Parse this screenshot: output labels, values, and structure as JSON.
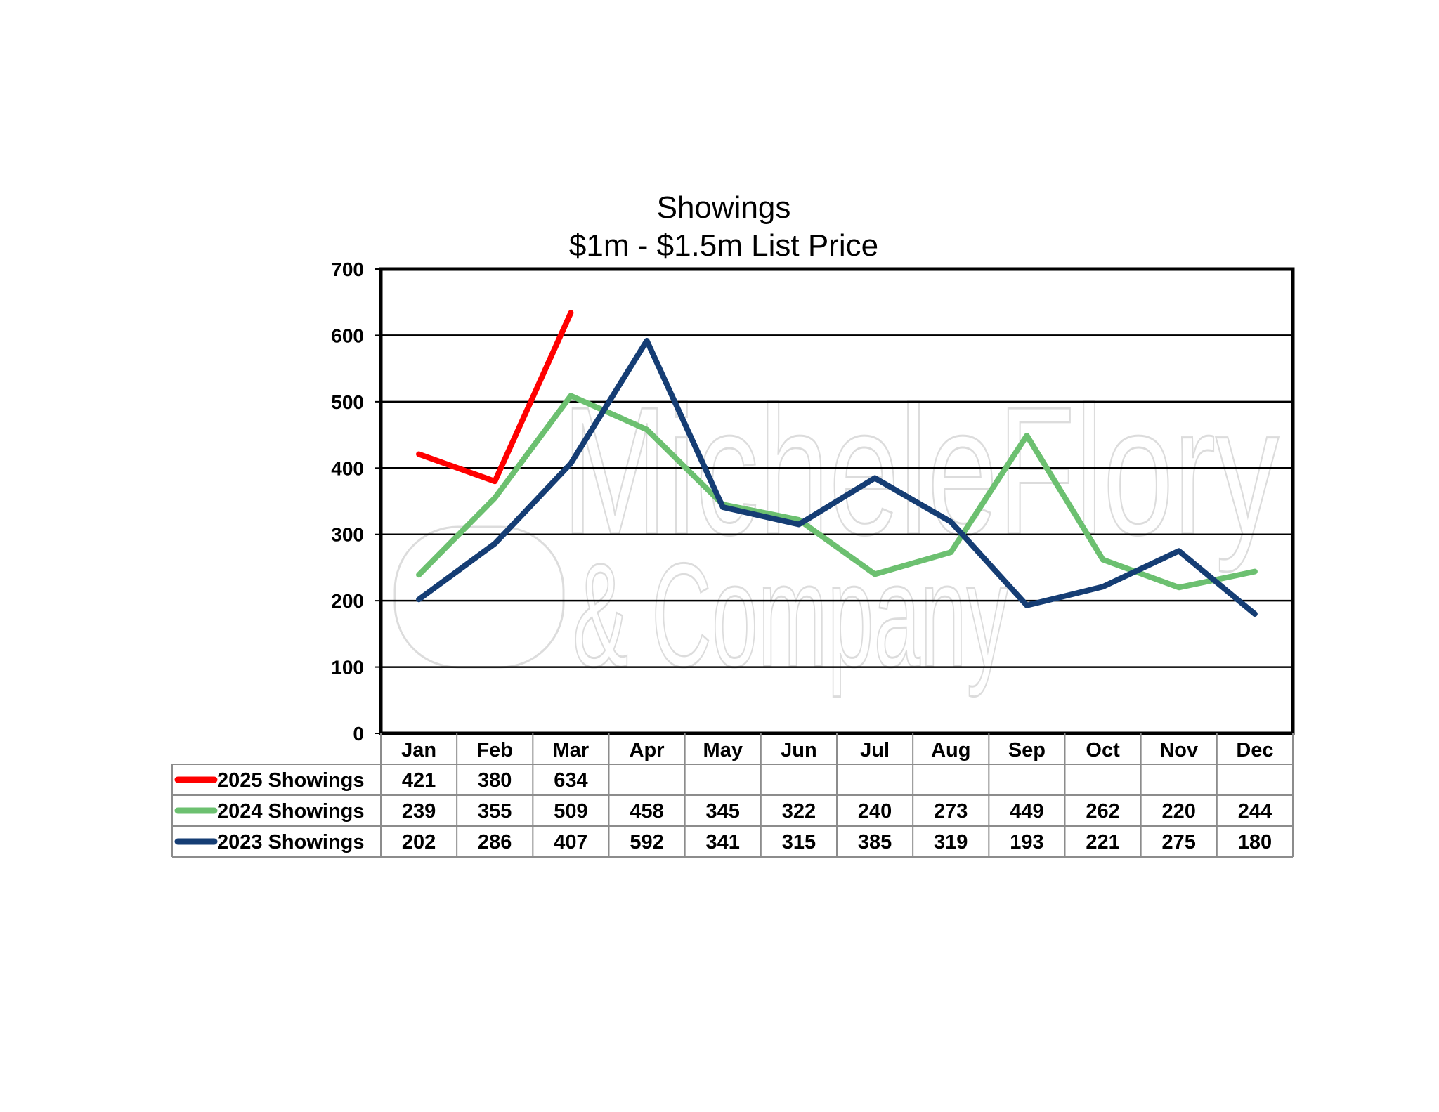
{
  "chart_data": {
    "type": "line",
    "title": "Showings",
    "subtitle": "$1m - $1.5m List Price",
    "categories": [
      "Jan",
      "Feb",
      "Mar",
      "Apr",
      "May",
      "Jun",
      "Jul",
      "Aug",
      "Sep",
      "Oct",
      "Nov",
      "Dec"
    ],
    "ylim": [
      0,
      700
    ],
    "yticks": [
      0,
      100,
      200,
      300,
      400,
      500,
      600,
      700
    ],
    "grid": true,
    "legend": "data-table-below",
    "watermark": "MicheleFlory & Company",
    "series": [
      {
        "name": "2025 Showings",
        "color": "#ff0000",
        "values": [
          421,
          380,
          634,
          null,
          null,
          null,
          null,
          null,
          null,
          null,
          null,
          null
        ]
      },
      {
        "name": "2024 Showings",
        "color": "#6cc070",
        "values": [
          239,
          355,
          509,
          458,
          345,
          322,
          240,
          273,
          449,
          262,
          220,
          244
        ]
      },
      {
        "name": "2023 Showings",
        "color": "#153d74",
        "values": [
          202,
          286,
          407,
          592,
          341,
          315,
          385,
          319,
          193,
          221,
          275,
          180
        ]
      }
    ]
  }
}
